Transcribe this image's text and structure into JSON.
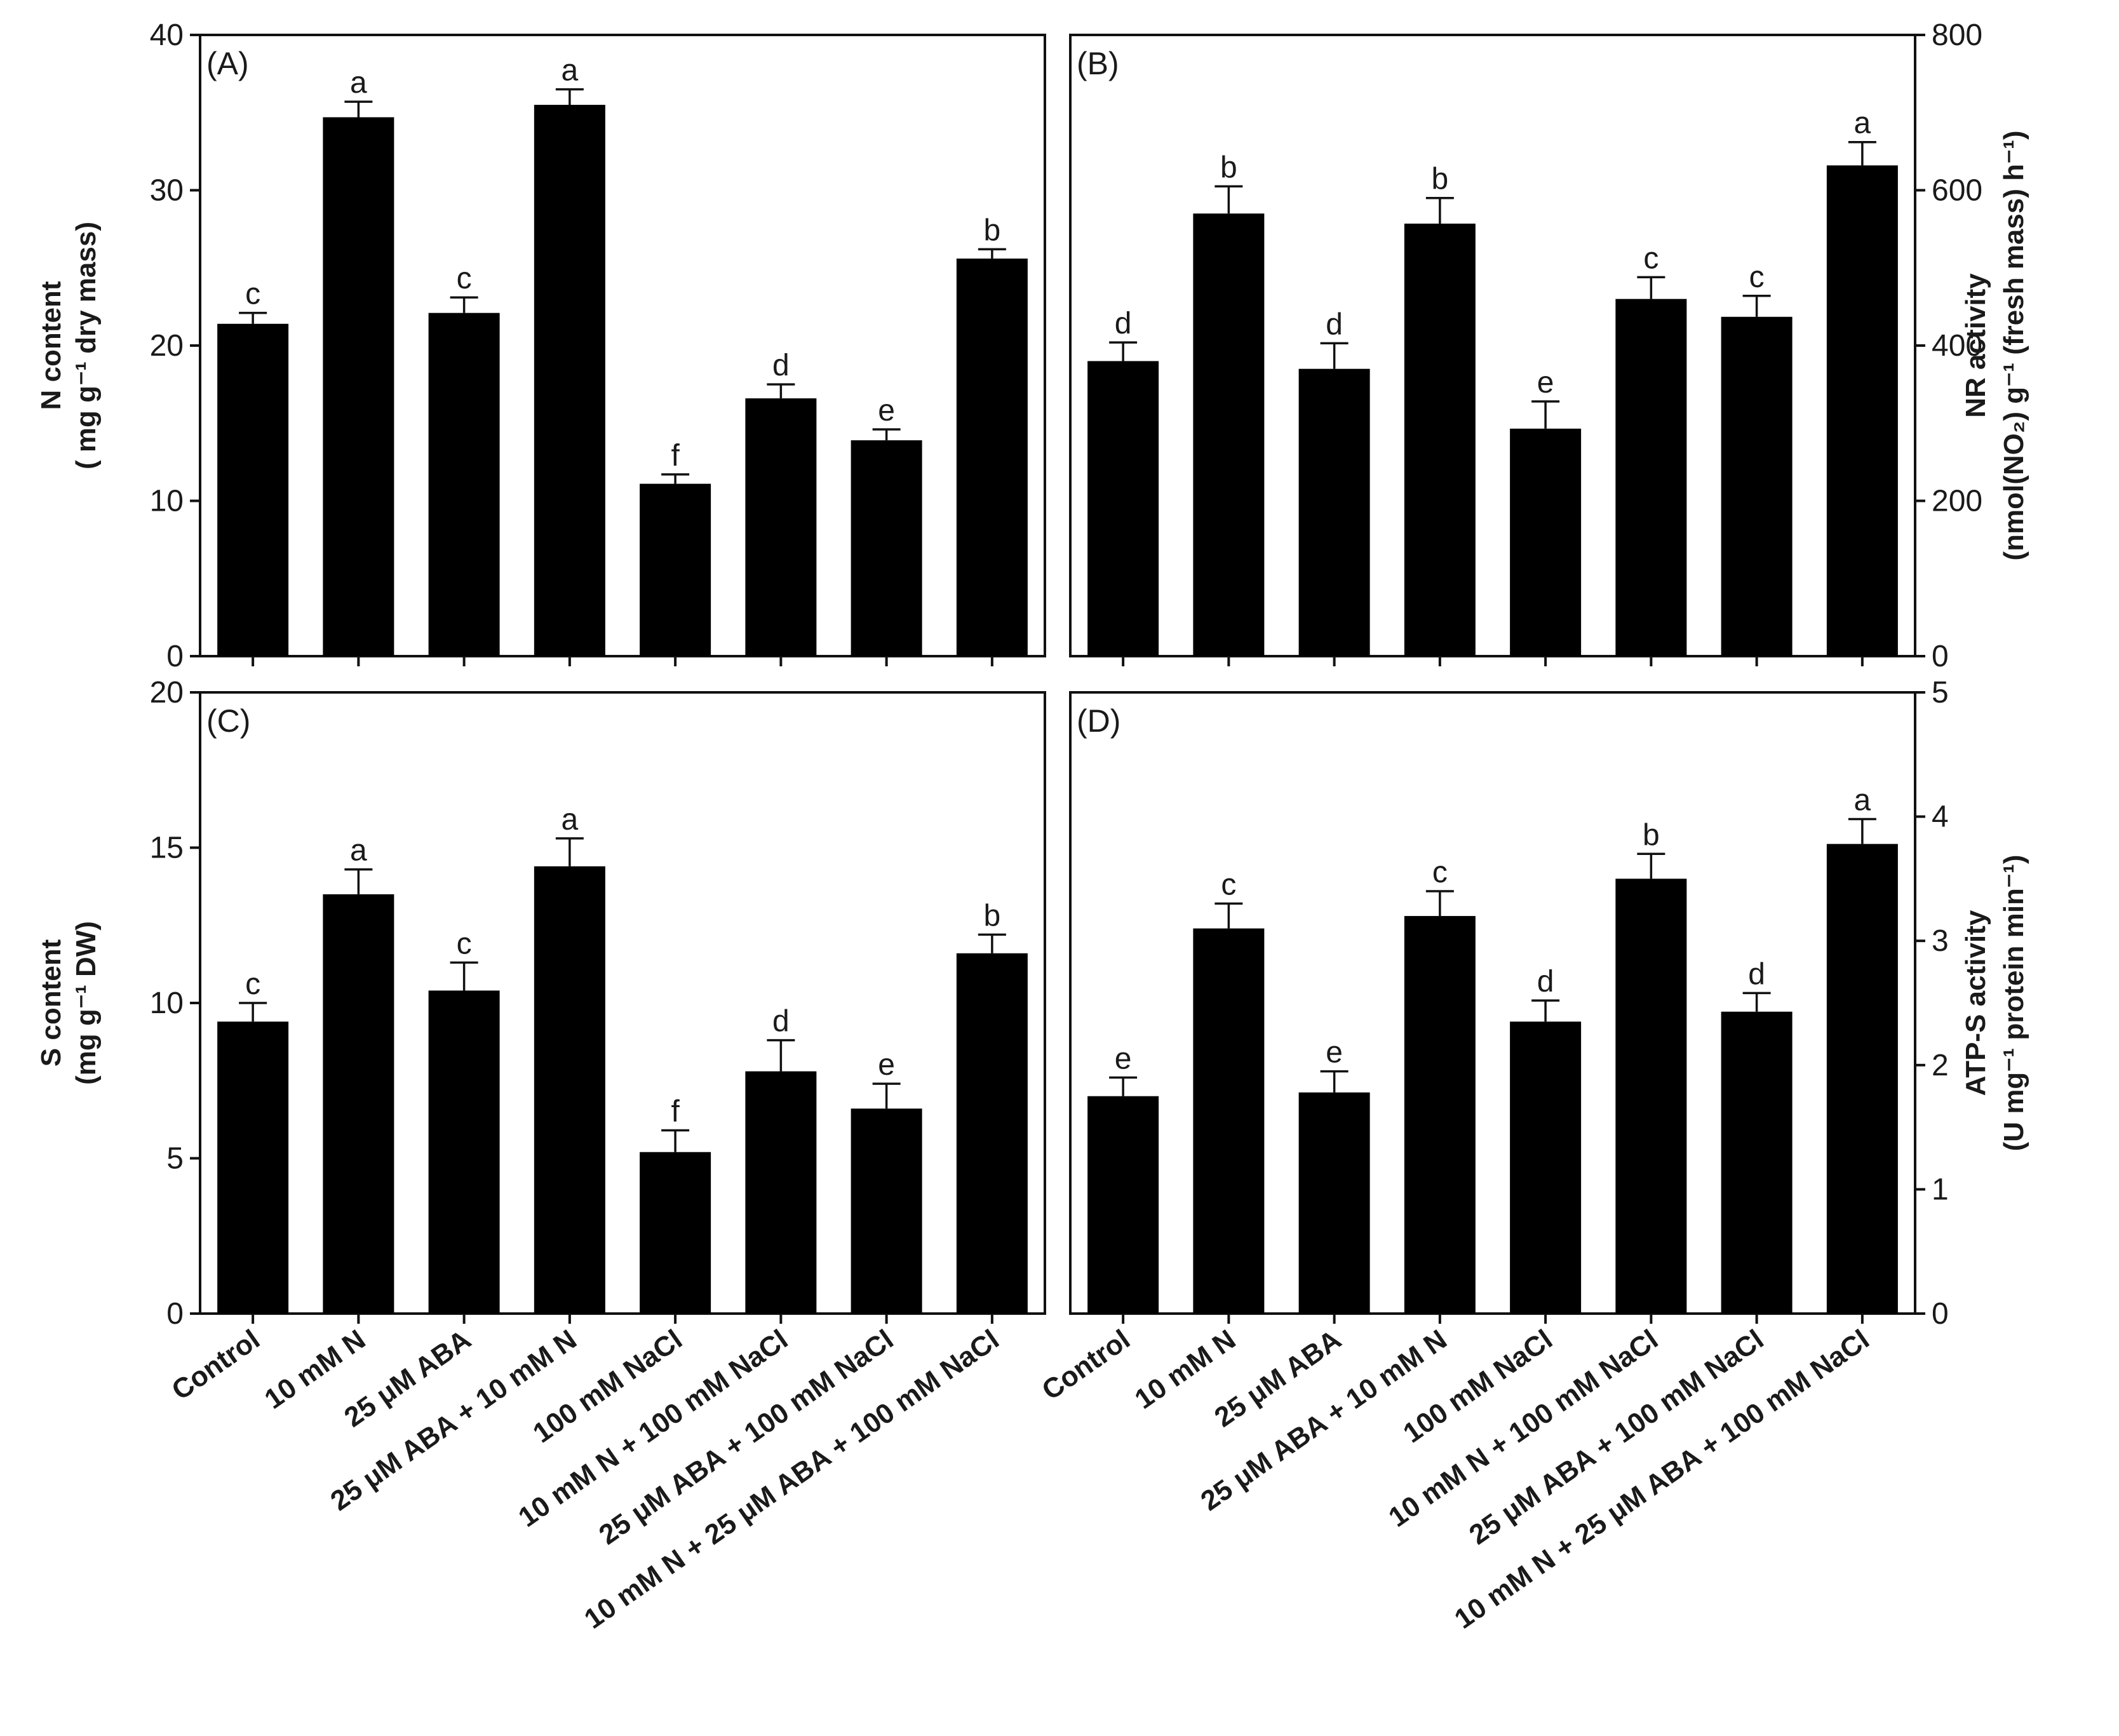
{
  "chart_data": [
    {
      "panel_label": "(A)",
      "type": "bar",
      "categories": [
        "Control",
        "10 mM N",
        "25 μM ABA",
        "25 μM ABA + 10 mM N",
        "100 mM NaCl",
        "10 mM N + 100 mM NaCl",
        "25 μM ABA + 100 mM NaCl",
        "10 mM N + 25 μM ABA + 100 mM NaCl"
      ],
      "values": [
        21.4,
        34.7,
        22.1,
        35.5,
        11.1,
        16.6,
        13.9,
        25.6
      ],
      "errors": [
        0.7,
        1.0,
        1.0,
        1.0,
        0.6,
        0.9,
        0.7,
        0.6
      ],
      "letters": [
        "c",
        "a",
        "c",
        "a",
        "f",
        "d",
        "e",
        "b"
      ],
      "ylabel_lines": [
        "N content",
        "( mg g⁻¹ dry mass)"
      ],
      "ylim": [
        0,
        40
      ],
      "yticks": [
        0,
        10,
        20,
        30,
        40
      ],
      "ytick_labels": [
        "0",
        "10",
        "20",
        "30",
        "40"
      ],
      "axis_side": "left"
    },
    {
      "panel_label": "(B)",
      "type": "bar",
      "categories": [
        "Control",
        "10 mM N",
        "25 μM ABA",
        "25 μM ABA + 10 mM N",
        "100 mM NaCl",
        "10 mM N + 100 mM NaCl",
        "25 μM ABA + 100 mM NaCl",
        "10 mM N + 25 μM ABA + 100 mM NaCl"
      ],
      "values": [
        380,
        570,
        370,
        557,
        293,
        460,
        437,
        632
      ],
      "errors": [
        24,
        35,
        33,
        33,
        35,
        28,
        27,
        30
      ],
      "letters": [
        "d",
        "b",
        "d",
        "b",
        "e",
        "c",
        "c",
        "a"
      ],
      "ylabel_lines": [
        "NR activity",
        "(nmol(NO₂) g⁻¹ (fresh mass) h⁻¹)"
      ],
      "ylim": [
        0,
        800
      ],
      "yticks": [
        0,
        200,
        400,
        600,
        800
      ],
      "ytick_labels": [
        "0",
        "200",
        "400",
        "600",
        "800"
      ],
      "axis_side": "right"
    },
    {
      "panel_label": "(C)",
      "type": "bar",
      "categories": [
        "Control",
        "10 mM N",
        "25 μM ABA",
        "25 μM ABA + 10 mM N",
        "100 mM NaCl",
        "10 mM N + 100 mM NaCl",
        "25 μM ABA + 100 mM NaCl",
        "10 mM N + 25 μM ABA + 100 mM NaCl"
      ],
      "values": [
        9.4,
        13.5,
        10.4,
        14.4,
        5.2,
        7.8,
        6.6,
        11.6
      ],
      "errors": [
        0.6,
        0.8,
        0.9,
        0.9,
        0.7,
        1.0,
        0.8,
        0.6
      ],
      "letters": [
        "c",
        "a",
        "c",
        "a",
        "f",
        "d",
        "e",
        "b"
      ],
      "ylabel_lines": [
        "S content",
        "(mg g⁻¹ DW)"
      ],
      "ylim": [
        0,
        20
      ],
      "yticks": [
        0,
        5,
        10,
        15,
        20
      ],
      "ytick_labels": [
        "0",
        "5",
        "10",
        "15",
        "20"
      ],
      "axis_side": "left"
    },
    {
      "panel_label": "(D)",
      "type": "bar",
      "categories": [
        "Control",
        "10 mM N",
        "25 μM ABA",
        "25 μM ABA + 10 mM N",
        "100 mM NaCl",
        "10 mM N + 100 mM NaCl",
        "25 μM ABA + 100 mM NaCl",
        "10 mM N + 25 μM ABA + 100 mM NaCl"
      ],
      "values": [
        1.75,
        3.1,
        1.78,
        3.2,
        2.35,
        3.5,
        2.43,
        3.78
      ],
      "errors": [
        0.15,
        0.2,
        0.17,
        0.2,
        0.17,
        0.2,
        0.15,
        0.2
      ],
      "letters": [
        "e",
        "c",
        "e",
        "c",
        "d",
        "b",
        "d",
        "a"
      ],
      "ylabel_lines": [
        "ATP-S activity",
        "(U mg⁻¹ protein min⁻¹)"
      ],
      "ylim": [
        0,
        5
      ],
      "yticks": [
        0,
        1,
        2,
        3,
        4,
        5
      ],
      "ytick_labels": [
        "0",
        "1",
        "2",
        "3",
        "4",
        "5"
      ],
      "axis_side": "right"
    }
  ]
}
